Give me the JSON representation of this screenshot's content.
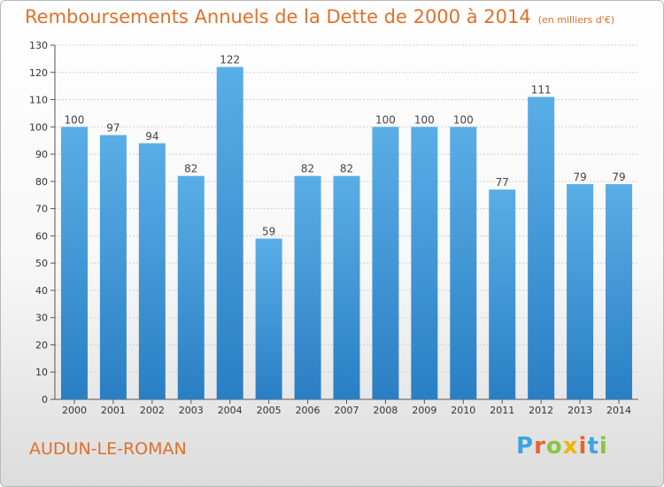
{
  "title": "Remboursements Annuels de la Dette de 2000 à 2014",
  "subtitle": "(en milliers d'€)",
  "location": "AUDUN-LE-ROMAN",
  "logo": {
    "letters": [
      "P",
      "r",
      "o",
      "x",
      "i",
      "t",
      "i"
    ],
    "colors": [
      "#3aa6e0",
      "#e8642a",
      "#8bc53f",
      "#f0b400",
      "#e8642a",
      "#3aa6e0",
      "#8bc53f"
    ]
  },
  "colors": {
    "bar_light": "#5aaee6",
    "bar_dark": "#2a7fc4",
    "title": "#e0702a"
  },
  "chart_data": {
    "type": "bar",
    "title": "Remboursements Annuels de la Dette de 2000 à 2014",
    "subtitle": "(en milliers d'€)",
    "categories": [
      "2000",
      "2001",
      "2002",
      "2003",
      "2004",
      "2005",
      "2006",
      "2007",
      "2008",
      "2009",
      "2010",
      "2011",
      "2012",
      "2013",
      "2014"
    ],
    "values": [
      100,
      97,
      94,
      82,
      122,
      59,
      82,
      82,
      100,
      100,
      100,
      77,
      111,
      79,
      79
    ],
    "ylim": [
      0,
      130
    ],
    "yticks": [
      0,
      10,
      20,
      30,
      40,
      50,
      60,
      70,
      80,
      90,
      100,
      110,
      120,
      130
    ],
    "grid": "horizontal",
    "legend": "none"
  }
}
